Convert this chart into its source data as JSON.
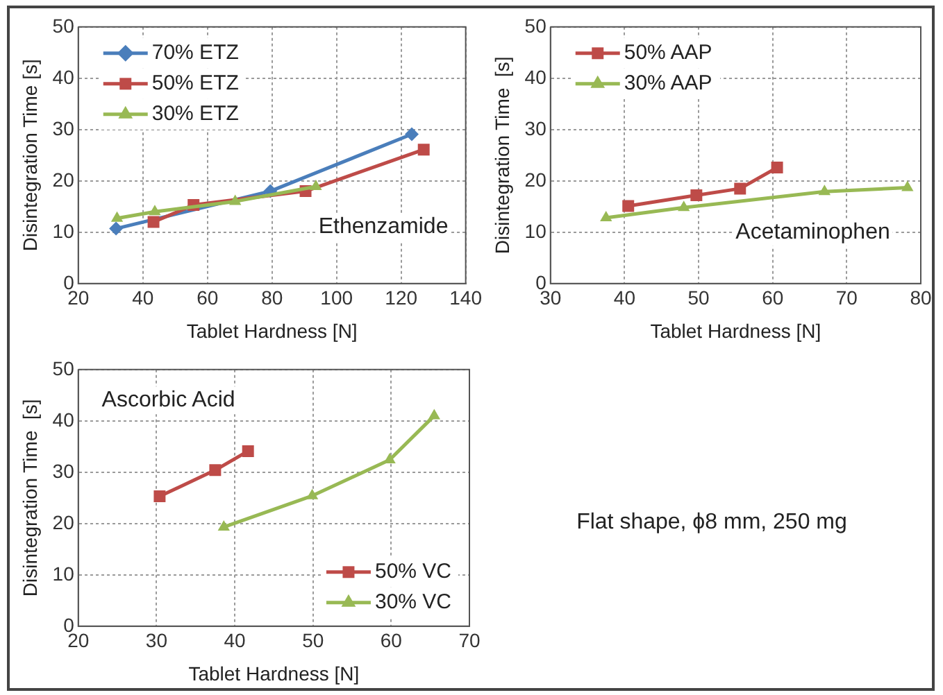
{
  "chart_data": [
    {
      "type": "line",
      "xlabel": "Tablet Hardness [N]",
      "ylabel": "Disintegration Time [s]",
      "xlim": [
        20,
        140
      ],
      "xticks": [
        20,
        40,
        60,
        80,
        100,
        120,
        140
      ],
      "ylim": [
        0,
        50
      ],
      "yticks": [
        0,
        10,
        20,
        30,
        40,
        50
      ],
      "grid": true,
      "legend": "top left",
      "annotations": [
        "Ethenzamide"
      ],
      "series": [
        {
          "name": "70% ETZ",
          "color": "#4a7ebb",
          "marker": "diamond",
          "x": [
            31.7,
            79.5,
            123.3
          ],
          "values": [
            10.7,
            18,
            29.1
          ]
        },
        {
          "name": "50% ETZ",
          "color": "#be4b48",
          "marker": "square",
          "x": [
            43.3,
            55.7,
            90.4,
            127
          ],
          "values": [
            12,
            15.3,
            18,
            26.1
          ]
        },
        {
          "name": "30% ETZ",
          "color": "#98b954",
          "marker": "triangle",
          "x": [
            32,
            43.7,
            68.6,
            93.6
          ],
          "values": [
            12.7,
            14,
            16,
            18.9
          ]
        }
      ]
    },
    {
      "type": "line",
      "xlabel": "Tablet Hardness [N]",
      "ylabel": "Disintegration Time  [s]",
      "xlim": [
        30,
        80
      ],
      "xticks": [
        30,
        40,
        50,
        60,
        70,
        80
      ],
      "ylim": [
        0,
        50
      ],
      "yticks": [
        0,
        10,
        20,
        30,
        40,
        50
      ],
      "grid": true,
      "legend": "top left",
      "annotations": [
        "Acetaminophen"
      ],
      "series": [
        {
          "name": "50% AAP",
          "color": "#be4b48",
          "marker": "square",
          "x": [
            40.5,
            49.7,
            55.6,
            60.6
          ],
          "values": [
            15.1,
            17.2,
            18.5,
            22.6
          ]
        },
        {
          "name": "30% AAP",
          "color": "#98b954",
          "marker": "triangle",
          "x": [
            37.5,
            48,
            67,
            78.2
          ],
          "values": [
            12.8,
            14.8,
            17.9,
            18.7
          ]
        }
      ]
    },
    {
      "type": "line",
      "xlabel": "Tablet Hardness [N]",
      "ylabel": "Disintegration Time  [s]",
      "xlim": [
        20,
        70
      ],
      "xticks": [
        20,
        30,
        40,
        50,
        60,
        70
      ],
      "ylim": [
        0,
        50
      ],
      "yticks": [
        0,
        10,
        20,
        30,
        40,
        50
      ],
      "grid": true,
      "legend": "bottom right",
      "annotations": [
        "Ascorbic Acid"
      ],
      "series": [
        {
          "name": "50% VC",
          "color": "#be4b48",
          "marker": "square",
          "x": [
            30.4,
            37.5,
            41.7
          ],
          "values": [
            25.3,
            30.4,
            34.1
          ]
        },
        {
          "name": "30% VC",
          "color": "#98b954",
          "marker": "triangle",
          "x": [
            38.6,
            49.9,
            59.8,
            65.5
          ],
          "values": [
            19.3,
            25.4,
            32.4,
            41
          ]
        }
      ]
    },
    {
      "type": "other",
      "annotations": [
        "Flat shape, ϕ8 mm, 250 mg"
      ]
    }
  ]
}
